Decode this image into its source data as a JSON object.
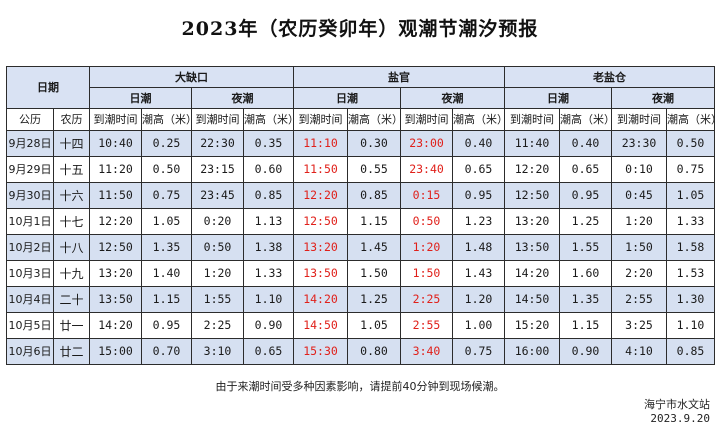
{
  "title": "2023年（农历癸卯年）观潮节潮汐预报",
  "headers": {
    "date_group": "日期",
    "gregorian": "公历",
    "lunar": "农历",
    "day_tide": "日潮",
    "night_tide": "夜潮",
    "arrival_time": "到潮时间",
    "tide_height": "潮高（米）"
  },
  "stations": [
    "大缺口",
    "盐官",
    "老盐仓"
  ],
  "rows": [
    {
      "date": "9月28日",
      "lunar": "十四",
      "cells": [
        "10:40",
        "0.25",
        "22:30",
        "0.35",
        "11:10",
        "0.30",
        "23:00",
        "0.40",
        "11:40",
        "0.40",
        "23:30",
        "0.50"
      ]
    },
    {
      "date": "9月29日",
      "lunar": "十五",
      "cells": [
        "11:20",
        "0.50",
        "23:15",
        "0.60",
        "11:50",
        "0.55",
        "23:40",
        "0.65",
        "12:20",
        "0.65",
        "0:10",
        "0.75"
      ]
    },
    {
      "date": "9月30日",
      "lunar": "十六",
      "cells": [
        "11:50",
        "0.75",
        "23:45",
        "0.85",
        "12:20",
        "0.85",
        "0:15",
        "0.95",
        "12:50",
        "0.95",
        "0:45",
        "1.05"
      ]
    },
    {
      "date": "10月1日",
      "lunar": "十七",
      "cells": [
        "12:20",
        "1.05",
        "0:20",
        "1.13",
        "12:50",
        "1.15",
        "0:50",
        "1.23",
        "13:20",
        "1.25",
        "1:20",
        "1.33"
      ]
    },
    {
      "date": "10月2日",
      "lunar": "十八",
      "cells": [
        "12:50",
        "1.35",
        "0:50",
        "1.38",
        "13:20",
        "1.45",
        "1:20",
        "1.48",
        "13:50",
        "1.55",
        "1:50",
        "1.58"
      ]
    },
    {
      "date": "10月3日",
      "lunar": "十九",
      "cells": [
        "13:20",
        "1.40",
        "1:20",
        "1.33",
        "13:50",
        "1.50",
        "1:50",
        "1.43",
        "14:20",
        "1.60",
        "2:20",
        "1.53"
      ]
    },
    {
      "date": "10月4日",
      "lunar": "二十",
      "cells": [
        "13:50",
        "1.15",
        "1:55",
        "1.10",
        "14:20",
        "1.25",
        "2:25",
        "1.20",
        "14:50",
        "1.35",
        "2:55",
        "1.30"
      ]
    },
    {
      "date": "10月5日",
      "lunar": "廿一",
      "cells": [
        "14:20",
        "0.95",
        "2:25",
        "0.90",
        "14:50",
        "1.05",
        "2:55",
        "1.00",
        "15:20",
        "1.15",
        "3:25",
        "1.10"
      ]
    },
    {
      "date": "10月6日",
      "lunar": "廿二",
      "cells": [
        "15:00",
        "0.70",
        "3:10",
        "0.65",
        "15:30",
        "0.80",
        "3:40",
        "0.75",
        "16:00",
        "0.90",
        "4:10",
        "0.85"
      ]
    }
  ],
  "highlight_color": "#e0201a",
  "note": "由于来潮时间受多种因素影响，请提前40分钟到现场候潮。",
  "issuer": "海宁市水文站",
  "issue_date": "2023.9.20"
}
